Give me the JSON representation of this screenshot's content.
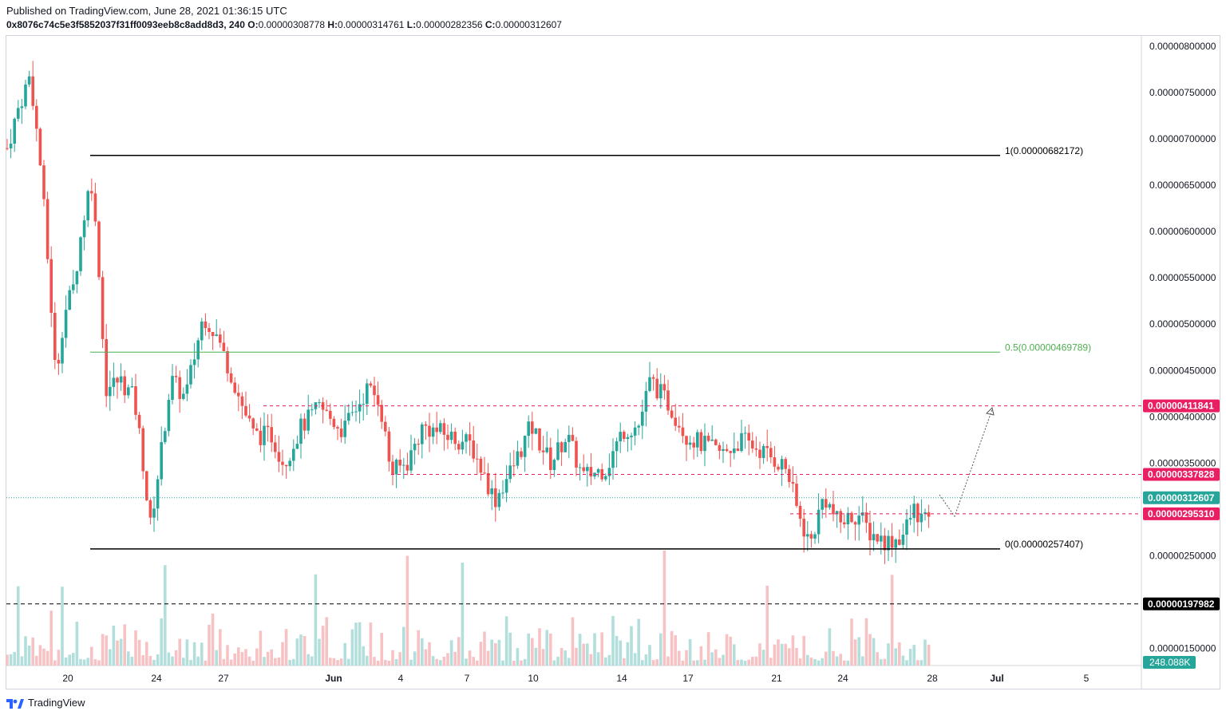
{
  "header": {
    "published": "Published on TradingView.com, June 28, 2021 01:36:15 UTC",
    "symbol": "0x8076c74c5e3f5852037f31ff0093eeb8c8add8d3, 240",
    "o_label": "O:",
    "o_value": "0.00000308778",
    "h_label": "H:",
    "h_value": "0.00000314761",
    "l_label": "L:",
    "l_value": "0.00000282356",
    "c_label": "C:",
    "c_value": "0.00000312607"
  },
  "footer": {
    "brand": "TradingView"
  },
  "colors": {
    "up": "#26a69a",
    "down": "#ef5350",
    "vol_up": "#b2dfdb",
    "vol_down": "#f7c2c4",
    "fib_line": "#000000",
    "fib_mid": "#4caf50",
    "level_red": "#e91e63",
    "price_teal": "#26a69a"
  },
  "chart_data": {
    "type": "candlestick",
    "x_ticks": [
      "20",
      "24",
      "27",
      "Jun",
      "4",
      "7",
      "10",
      "14",
      "17",
      "21",
      "24",
      "28",
      "Jul",
      "5"
    ],
    "y_ticks": [
      "0.00000800000",
      "0.00000750000",
      "0.00000700000",
      "0.00000650000",
      "0.00000600000",
      "0.00000550000",
      "0.00000500000",
      "0.00000450000",
      "0.00000400000",
      "0.00000350000",
      "0.00000250000",
      "0.00000150000"
    ],
    "y_range": [
      1.2e-06,
      8.2e-06
    ],
    "last_price": "0.00000312607",
    "volume_label": "248.088K",
    "fib_levels": [
      {
        "label": "1(0.00000682172)",
        "value": 6.82172e-06
      },
      {
        "label": "0.5(0.00000469789)",
        "value": 4.69789e-06
      },
      {
        "label": "0(0.00000257407)",
        "value": 2.57407e-06
      }
    ],
    "levels": [
      {
        "label": "0.00000411841",
        "value": 4.11841e-06
      },
      {
        "label": "0.00000337828",
        "value": 3.37828e-06
      },
      {
        "label": "0.00000295310",
        "value": 2.9531e-06
      },
      {
        "label": "0.00000197982",
        "value": 1.97982e-06
      }
    ]
  }
}
